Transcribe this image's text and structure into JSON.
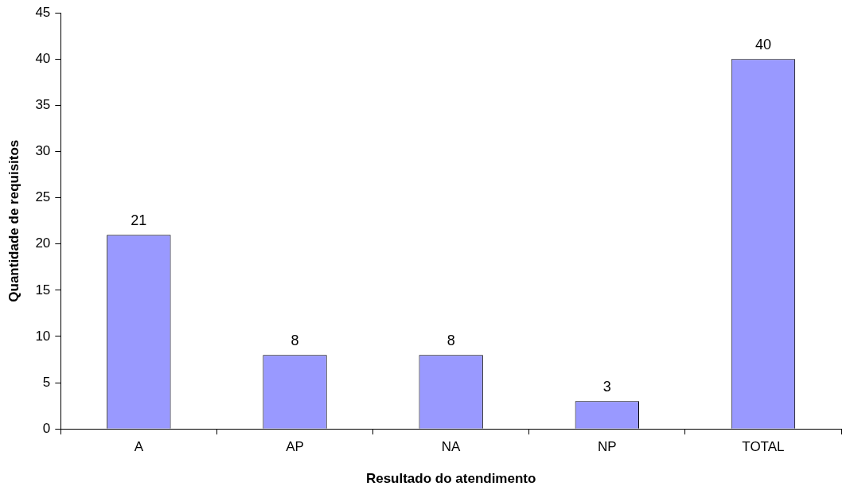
{
  "chart_data": {
    "type": "bar",
    "xlabel": "Resultado do atendimento",
    "ylabel": "Quantidade de requisitos",
    "categories": [
      "A",
      "AP",
      "NA",
      "NP",
      "TOTAL"
    ],
    "values": [
      21,
      8,
      8,
      3,
      40
    ],
    "color": "#9999ff",
    "ylim": [
      0,
      45
    ],
    "yticks": [
      0,
      5,
      10,
      15,
      20,
      25,
      30,
      35,
      40,
      45
    ],
    "data_labels": true
  }
}
